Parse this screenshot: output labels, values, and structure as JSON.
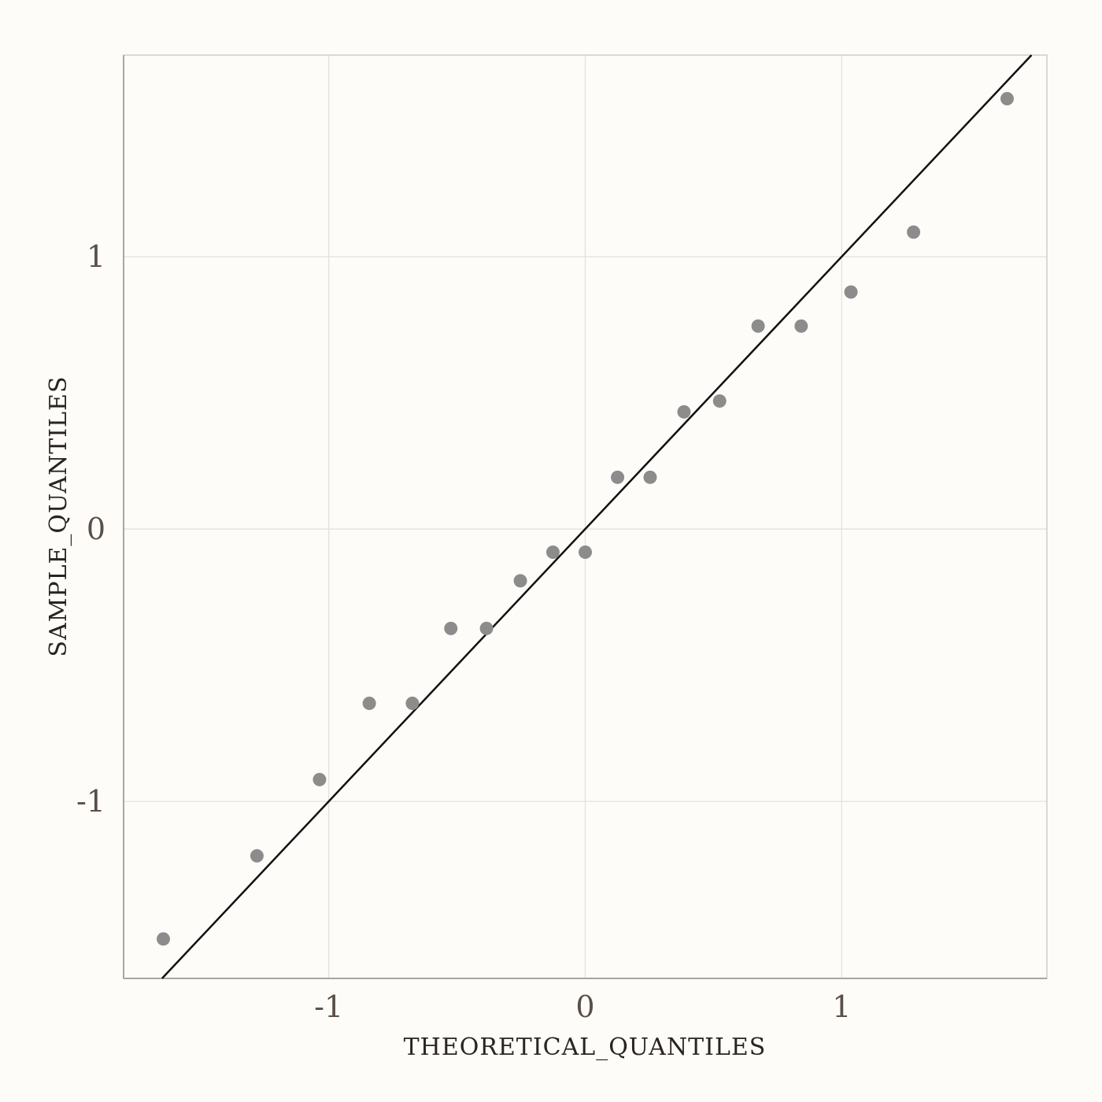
{
  "chart_data": {
    "type": "scatter",
    "title": "",
    "xlabel": "THEORETICAL_QUANTILES",
    "ylabel": "SAMPLE_QUANTILES",
    "xlim": [
      -1.8,
      1.8
    ],
    "ylim": [
      -1.65,
      1.74
    ],
    "xticks": [
      {
        "value": -1,
        "label": "-1"
      },
      {
        "value": 0,
        "label": "0"
      },
      {
        "value": 1,
        "label": "1"
      }
    ],
    "yticks": [
      {
        "value": -1,
        "label": "-1"
      },
      {
        "value": 0,
        "label": "0"
      },
      {
        "value": 1,
        "label": "1"
      }
    ],
    "grid": true,
    "points": [
      {
        "x": -1.645,
        "y": -1.505
      },
      {
        "x": -1.28,
        "y": -1.2
      },
      {
        "x": -1.036,
        "y": -0.92
      },
      {
        "x": -0.842,
        "y": -0.64
      },
      {
        "x": -0.674,
        "y": -0.64
      },
      {
        "x": -0.524,
        "y": -0.365
      },
      {
        "x": -0.385,
        "y": -0.365
      },
      {
        "x": -0.253,
        "y": -0.19
      },
      {
        "x": -0.126,
        "y": -0.085
      },
      {
        "x": 0.0,
        "y": -0.085
      },
      {
        "x": 0.126,
        "y": 0.19
      },
      {
        "x": 0.253,
        "y": 0.19
      },
      {
        "x": 0.385,
        "y": 0.43
      },
      {
        "x": 0.524,
        "y": 0.47
      },
      {
        "x": 0.674,
        "y": 0.745
      },
      {
        "x": 0.842,
        "y": 0.745
      },
      {
        "x": 1.036,
        "y": 0.87
      },
      {
        "x": 1.28,
        "y": 1.09
      },
      {
        "x": 1.645,
        "y": 1.58
      }
    ],
    "reference_line": {
      "slope": 1,
      "intercept": 0
    },
    "colors": {
      "points": "#8c8c8c",
      "line": "#111111",
      "background": "#fdfcf9"
    }
  }
}
